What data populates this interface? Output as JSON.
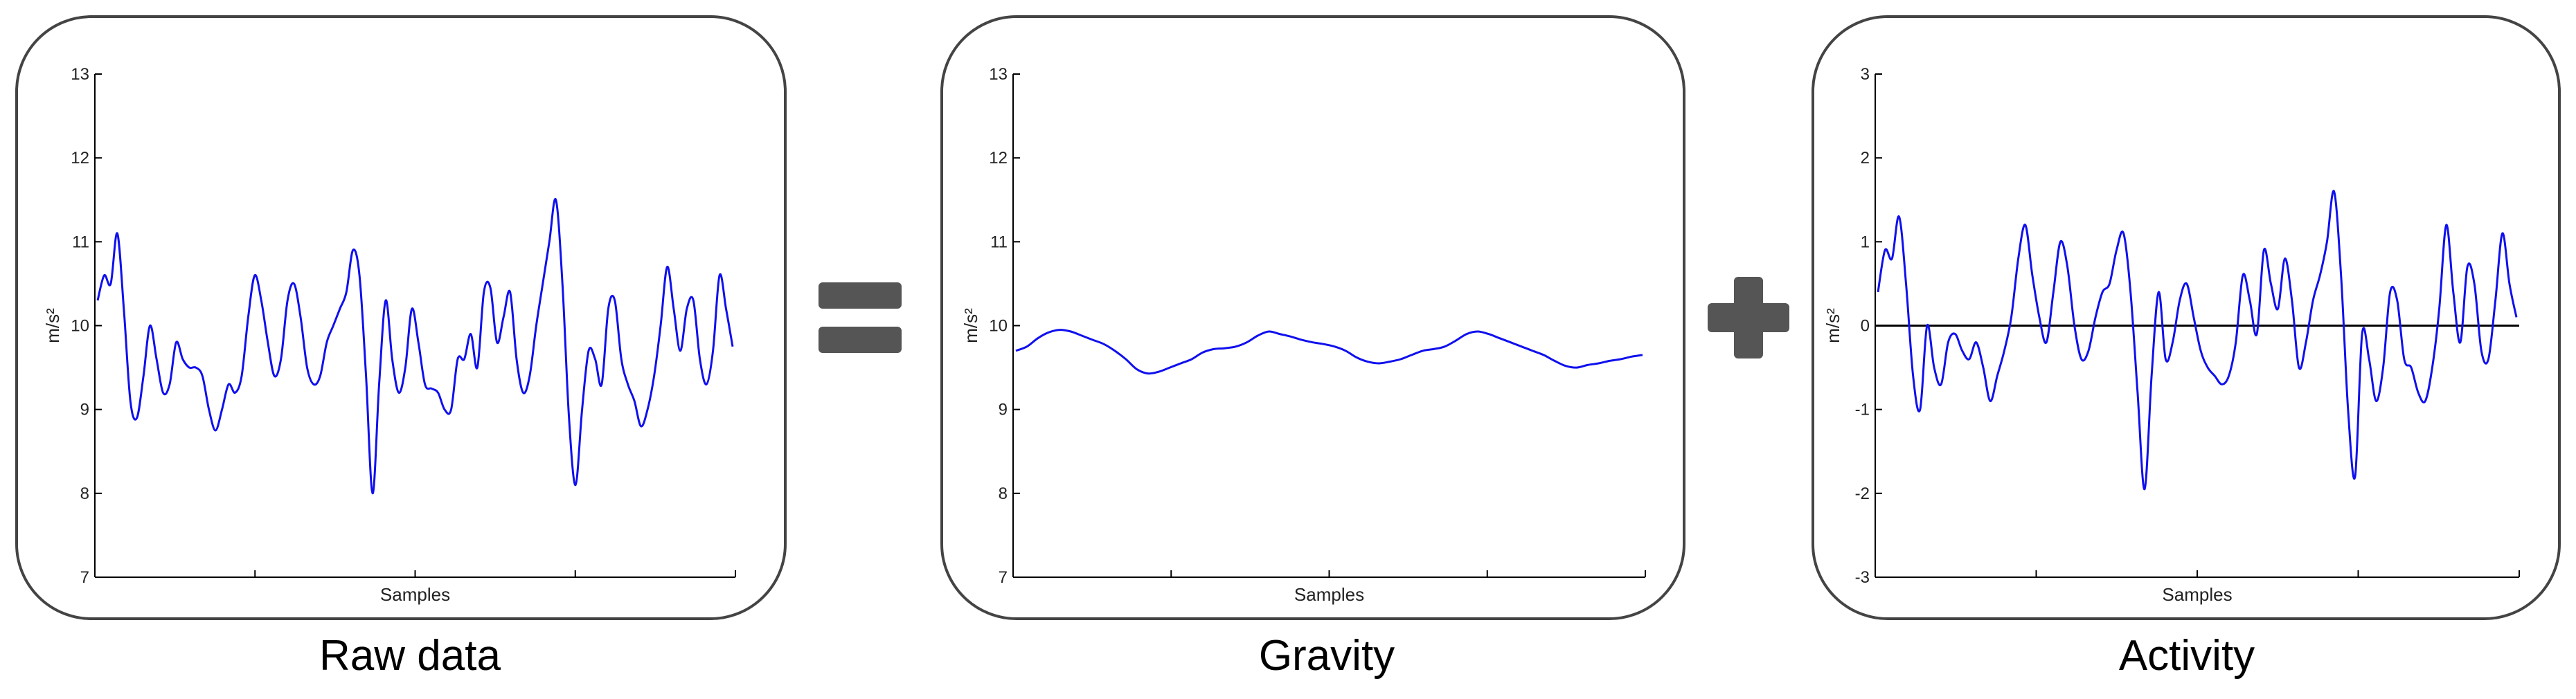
{
  "captions": [
    "Raw data",
    "Gravity",
    "Activity"
  ],
  "operators": {
    "equals_icon": "equals-sign",
    "plus_icon": "plus-sign",
    "color": "#555555"
  },
  "colors": {
    "series": "#1010ee",
    "axis": "#000000",
    "frame": "#444444"
  },
  "chart_data": [
    {
      "type": "line",
      "xlabel": "Samples",
      "ylabel": "m/s²",
      "ylim": [
        7,
        13
      ],
      "yticks": [
        7,
        8,
        9,
        10,
        11,
        12,
        13
      ],
      "x_tick_count": 3,
      "x_tick_labels": false,
      "series": [
        {
          "values": [
            10.3,
            10.6,
            10.5,
            11.1,
            10.2,
            9.1,
            8.9,
            9.4,
            10.0,
            9.6,
            9.2,
            9.3,
            9.8,
            9.6,
            9.5,
            9.5,
            9.4,
            9.0,
            8.75,
            9.0,
            9.3,
            9.2,
            9.4,
            10.1,
            10.6,
            10.3,
            9.8,
            9.4,
            9.6,
            10.3,
            10.5,
            10.1,
            9.5,
            9.3,
            9.4,
            9.8,
            10.0,
            10.2,
            10.4,
            10.9,
            10.6,
            9.4,
            8.0,
            9.3,
            10.3,
            9.6,
            9.2,
            9.5,
            10.2,
            9.8,
            9.3,
            9.25,
            9.2,
            9.0,
            9.0,
            9.6,
            9.6,
            9.9,
            9.5,
            10.4,
            10.45,
            9.8,
            10.1,
            10.4,
            9.6,
            9.2,
            9.4,
            10.0,
            10.5,
            11.0,
            11.5,
            10.5,
            8.9,
            8.1,
            9.0,
            9.7,
            9.6,
            9.3,
            10.2,
            10.3,
            9.6,
            9.3,
            9.1,
            8.8,
            9.0,
            9.4,
            10.0,
            10.7,
            10.2,
            9.7,
            10.2,
            10.3,
            9.6,
            9.3,
            9.7,
            10.6,
            10.2,
            9.75
          ]
        }
      ]
    },
    {
      "type": "line",
      "xlabel": "Samples",
      "ylabel": "m/s²",
      "ylim": [
        7,
        13
      ],
      "yticks": [
        7,
        8,
        9,
        10,
        11,
        12,
        13
      ],
      "x_tick_count": 3,
      "x_tick_labels": false,
      "series": [
        {
          "values": [
            9.7,
            9.75,
            9.85,
            9.92,
            9.95,
            9.93,
            9.88,
            9.83,
            9.78,
            9.7,
            9.6,
            9.48,
            9.43,
            9.45,
            9.5,
            9.55,
            9.6,
            9.68,
            9.72,
            9.73,
            9.75,
            9.8,
            9.88,
            9.93,
            9.9,
            9.87,
            9.83,
            9.8,
            9.78,
            9.75,
            9.7,
            9.62,
            9.57,
            9.55,
            9.57,
            9.6,
            9.65,
            9.7,
            9.72,
            9.75,
            9.82,
            9.9,
            9.93,
            9.9,
            9.85,
            9.8,
            9.75,
            9.7,
            9.65,
            9.58,
            9.52,
            9.5,
            9.53,
            9.55,
            9.58,
            9.6,
            9.63,
            9.65
          ]
        }
      ]
    },
    {
      "type": "line",
      "xlabel": "Samples",
      "ylabel": "m/s²",
      "ylim": [
        -3,
        3
      ],
      "yticks": [
        -3,
        -2,
        -1,
        0,
        1,
        2,
        3
      ],
      "x_tick_count": 3,
      "x_tick_labels": false,
      "zero_line": true,
      "series": [
        {
          "values": [
            0.4,
            0.9,
            0.8,
            1.3,
            0.5,
            -0.6,
            -1.0,
            0.0,
            -0.5,
            -0.7,
            -0.2,
            -0.1,
            -0.3,
            -0.4,
            -0.2,
            -0.5,
            -0.9,
            -0.6,
            -0.3,
            0.1,
            0.8,
            1.2,
            0.6,
            0.1,
            -0.2,
            0.4,
            1.0,
            0.7,
            0.0,
            -0.4,
            -0.3,
            0.1,
            0.4,
            0.5,
            0.9,
            1.1,
            0.4,
            -0.8,
            -1.95,
            -0.6,
            0.4,
            -0.4,
            -0.2,
            0.3,
            0.5,
            0.1,
            -0.3,
            -0.5,
            -0.6,
            -0.7,
            -0.6,
            -0.2,
            0.6,
            0.3,
            -0.1,
            0.9,
            0.5,
            0.2,
            0.8,
            0.3,
            -0.5,
            -0.2,
            0.3,
            0.6,
            1.0,
            1.6,
            0.6,
            -1.0,
            -1.8,
            -0.1,
            -0.4,
            -0.9,
            -0.5,
            0.4,
            0.3,
            -0.4,
            -0.5,
            -0.8,
            -0.9,
            -0.5,
            0.2,
            1.2,
            0.4,
            -0.2,
            0.7,
            0.5,
            -0.3,
            -0.4,
            0.3,
            1.1,
            0.5,
            0.1
          ]
        }
      ]
    }
  ]
}
